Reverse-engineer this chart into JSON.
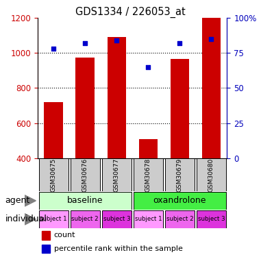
{
  "title": "GDS1334 / 226053_at",
  "samples": [
    "GSM30675",
    "GSM30676",
    "GSM30677",
    "GSM30678",
    "GSM30679",
    "GSM30680"
  ],
  "count_values": [
    718,
    975,
    1090,
    510,
    965,
    1200
  ],
  "percentile_values": [
    78,
    82,
    84,
    65,
    82,
    85
  ],
  "ylim_left": [
    400,
    1200
  ],
  "ylim_right": [
    0,
    100
  ],
  "yticks_left": [
    400,
    600,
    800,
    1000,
    1200
  ],
  "yticks_right": [
    0,
    25,
    50,
    75,
    100
  ],
  "bar_color": "#cc0000",
  "dot_color": "#0000cc",
  "bar_bottom": 400,
  "agent_colors": [
    "#ccffcc",
    "#44ee44"
  ],
  "individual_colors": [
    "#ff88ff",
    "#ee55ee",
    "#dd22dd"
  ],
  "sample_box_color": "#cccccc",
  "left_axis_color": "#cc0000",
  "right_axis_color": "#0000bb",
  "bar_width": 0.6,
  "individual_labels": [
    "subject 1",
    "subject 2",
    "subject 3",
    "subject 1",
    "subject 2",
    "subject 3"
  ]
}
